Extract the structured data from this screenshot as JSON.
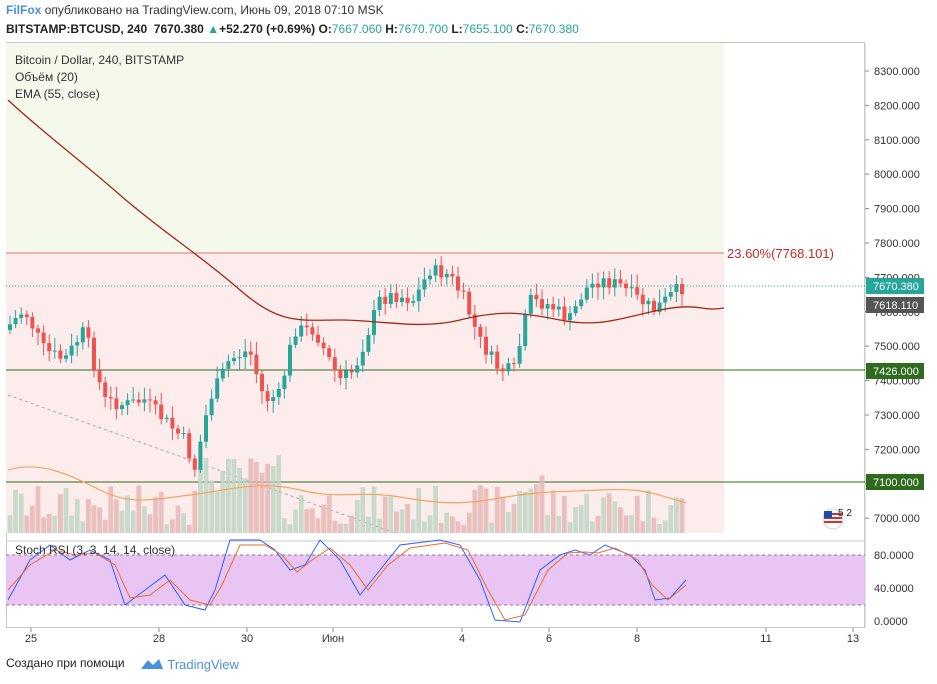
{
  "header": {
    "brand": "FilFox",
    "published": "опубликовано на TradingView.com, Июнь 09, 2018 07:10 MSK",
    "symbol": "BITSTAMP:BTCUSD, 240",
    "last": "7670.380",
    "change": "+52.270 (+0.69%)",
    "o_label": "O:",
    "o": "7667.060",
    "h_label": "H:",
    "h": "7670.700",
    "l_label": "L:",
    "l": "7655.100",
    "c_label": "C:",
    "c": "7670.380"
  },
  "legend": {
    "title": "Bitcoin / Dollar, 240, BITSTAMP",
    "volume": "Объём (20)",
    "ema": "EMA (55, close)",
    "stoch": "Stoch RSI (3, 3, 14, 14, close)"
  },
  "annotations": {
    "fib_label": "23.60%(7768.101)",
    "flag_count": "5 2"
  },
  "price_axis": {
    "ticks": [
      "8300.000",
      "8200.000",
      "8100.000",
      "8000.000",
      "7900.000",
      "7800.000",
      "7700.000",
      "7600.000",
      "7500.000",
      "7400.000",
      "7300.000",
      "7200.000",
      "7100.000",
      "7000.000"
    ],
    "labels": [
      {
        "text": "7670.380",
        "color": "#26a69a"
      },
      {
        "text": "7618.110",
        "color": "#555555"
      },
      {
        "text": "7426.000",
        "color": "#2e6b1e"
      },
      {
        "text": "7100.000",
        "color": "#2e6b1e"
      }
    ]
  },
  "stoch_axis": {
    "ticks": [
      "80.0000",
      "40.0000",
      "0.0000"
    ]
  },
  "time_axis": {
    "ticks": [
      "25",
      "28",
      "30",
      "Июн",
      "4",
      "6",
      "8",
      "11",
      "13"
    ]
  },
  "colors": {
    "up": "#26a69a",
    "down": "#ef5350",
    "ema": "#a52714",
    "rsi_k": "#2962ff",
    "rsi_d": "#ef6c2a",
    "stoch_band": "#e1bee7",
    "fib_line": "#e57373",
    "level_line": "#2e6b1e"
  },
  "footer": {
    "made_with": "Создано при помощи",
    "logo": "TradingView"
  }
}
